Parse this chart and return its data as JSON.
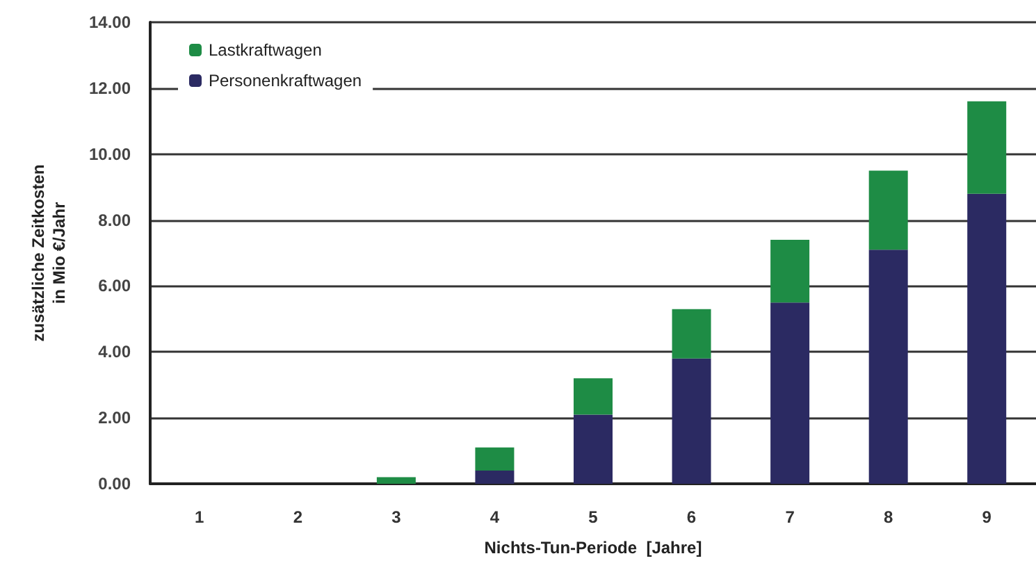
{
  "chart_data": {
    "type": "bar",
    "stacked": true,
    "xlabel": "Nichts-Tun-Periode  [Jahre]",
    "ylabel": "zusätzliche Zeitkosten\nin Mio €/Jahr",
    "categories": [
      "1",
      "2",
      "3",
      "4",
      "5",
      "6",
      "7",
      "8",
      "9"
    ],
    "series": [
      {
        "name": "Personenkraftwagen",
        "color": "#2b2a62",
        "values": [
          0,
          0,
          0,
          0.4,
          2.1,
          3.8,
          5.5,
          7.1,
          8.8
        ]
      },
      {
        "name": "Lastkraftwagen",
        "color": "#1e8c45",
        "values": [
          0,
          0,
          0.2,
          0.7,
          1.1,
          1.5,
          1.9,
          2.4,
          2.8
        ]
      }
    ],
    "ylim": [
      0,
      14
    ],
    "yticks": [
      {
        "value": 0,
        "label": "0.00"
      },
      {
        "value": 2,
        "label": "2.00"
      },
      {
        "value": 4,
        "label": "4.00"
      },
      {
        "value": 6,
        "label": "6.00"
      },
      {
        "value": 8,
        "label": "8.00"
      },
      {
        "value": 10,
        "label": "10.00"
      },
      {
        "value": 12,
        "label": "12.00"
      },
      {
        "value": 14,
        "label": "14.00"
      }
    ],
    "grid": "y",
    "legend": "top left"
  }
}
